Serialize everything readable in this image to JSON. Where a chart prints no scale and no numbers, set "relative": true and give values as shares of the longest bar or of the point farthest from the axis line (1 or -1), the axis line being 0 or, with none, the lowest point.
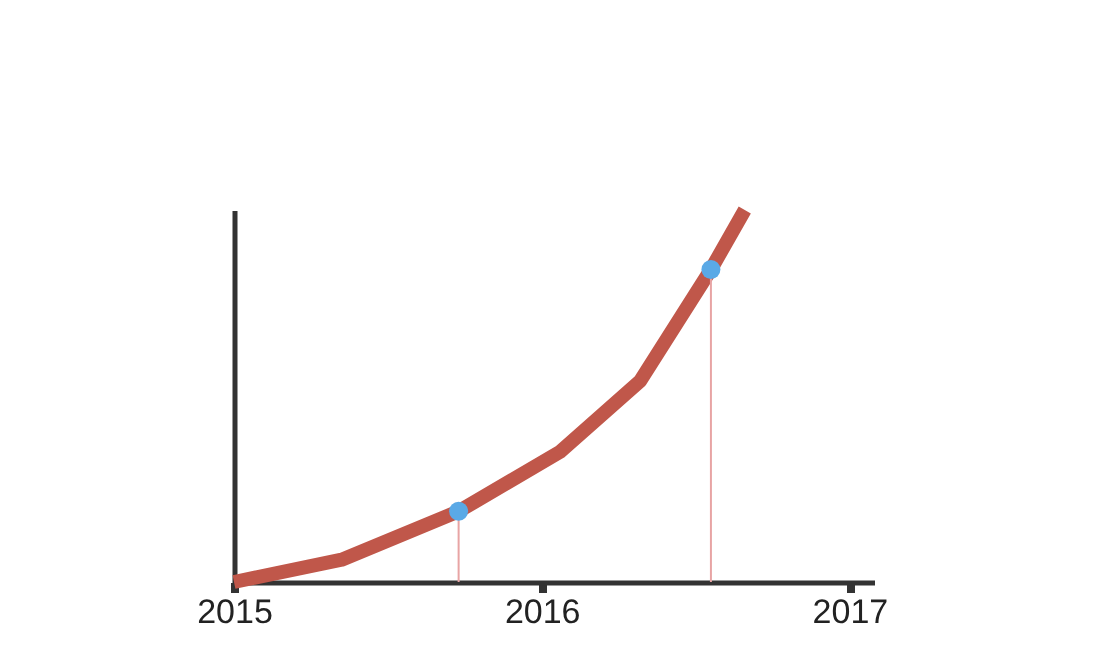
{
  "chart_data": {
    "type": "line",
    "relative": true,
    "xlim": [
      2015,
      2017.08
    ],
    "xticks": [
      2015,
      2016,
      2017
    ],
    "series": [
      {
        "color": "#c0574a",
        "x": [
          2015,
          2015.35,
          2015.73,
          2016.06,
          2016.32,
          2016.55,
          2016.66
        ],
        "values": [
          0,
          0.06,
          0.19,
          0.35,
          0.54,
          0.84,
          1
        ]
      },
      {
        "type": "scatter",
        "color": "#5aa9e6",
        "x": [
          2015.73,
          2016.55
        ],
        "values": [
          0.19,
          0.84
        ]
      },
      {
        "type": "line",
        "color": "#e8a4a4",
        "x": [
          2015.73,
          2015.73
        ],
        "values": [
          0,
          0.19
        ]
      },
      {
        "type": "line",
        "color": "#e8a4a4",
        "x": [
          2016.55,
          2016.55
        ],
        "values": [
          0,
          0.84
        ]
      }
    ],
    "grid": false
  }
}
